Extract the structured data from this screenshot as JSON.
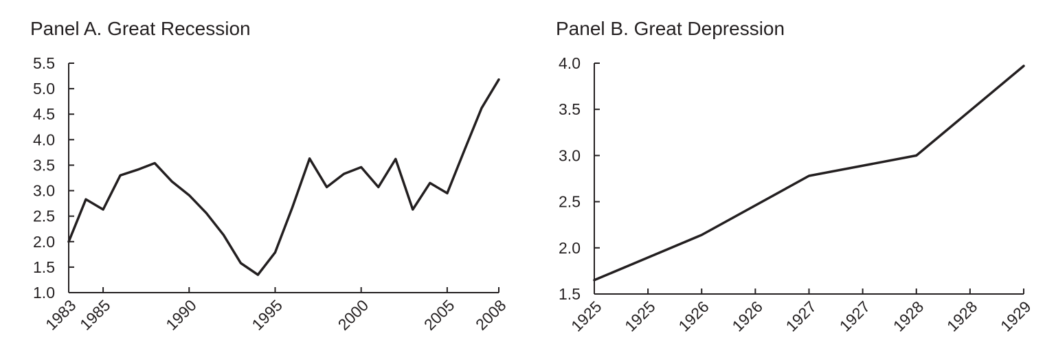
{
  "chart_data": [
    {
      "type": "line",
      "title": "Panel A. Great Recession",
      "xlabel": "",
      "ylabel": "",
      "x": [
        1983,
        1984,
        1985,
        1986,
        1987,
        1988,
        1989,
        1990,
        1991,
        1992,
        1993,
        1994,
        1995,
        1996,
        1997,
        1998,
        1999,
        2000,
        2001,
        2002,
        2003,
        2004,
        2005,
        2006,
        2007,
        2008
      ],
      "series": [
        {
          "values": [
            2.0,
            2.83,
            2.63,
            3.3,
            3.41,
            3.54,
            3.18,
            2.91,
            2.56,
            2.13,
            1.58,
            1.35,
            1.79,
            2.67,
            3.63,
            3.07,
            3.33,
            3.46,
            3.07,
            3.62,
            2.63,
            3.15,
            2.95,
            3.79,
            4.62,
            5.18
          ]
        }
      ],
      "ylim": [
        1.0,
        5.5
      ],
      "yticks": [
        "1.0",
        "1.5",
        "2.0",
        "2.5",
        "3.0",
        "3.5",
        "4.0",
        "4.5",
        "5.0",
        "5.5"
      ],
      "xticks": [
        "1983",
        "1985",
        "1990",
        "1995",
        "2000",
        "2005",
        "2008"
      ],
      "grid": false
    },
    {
      "type": "line",
      "title": "Panel B. Great Depression",
      "xlabel": "",
      "ylabel": "",
      "x": [
        "1925",
        "1926",
        "1927",
        "1928",
        "1929"
      ],
      "series": [
        {
          "values": [
            1.65,
            2.14,
            2.78,
            3.0,
            3.97
          ]
        }
      ],
      "ylim": [
        1.5,
        4.0
      ],
      "yticks": [
        "1.5",
        "2.0",
        "2.5",
        "3.0",
        "3.5",
        "4.0"
      ],
      "xticks": [
        "1925",
        "1925",
        "1926",
        "1926",
        "1927",
        "1927",
        "1928",
        "1928",
        "1929"
      ],
      "grid": false
    }
  ]
}
